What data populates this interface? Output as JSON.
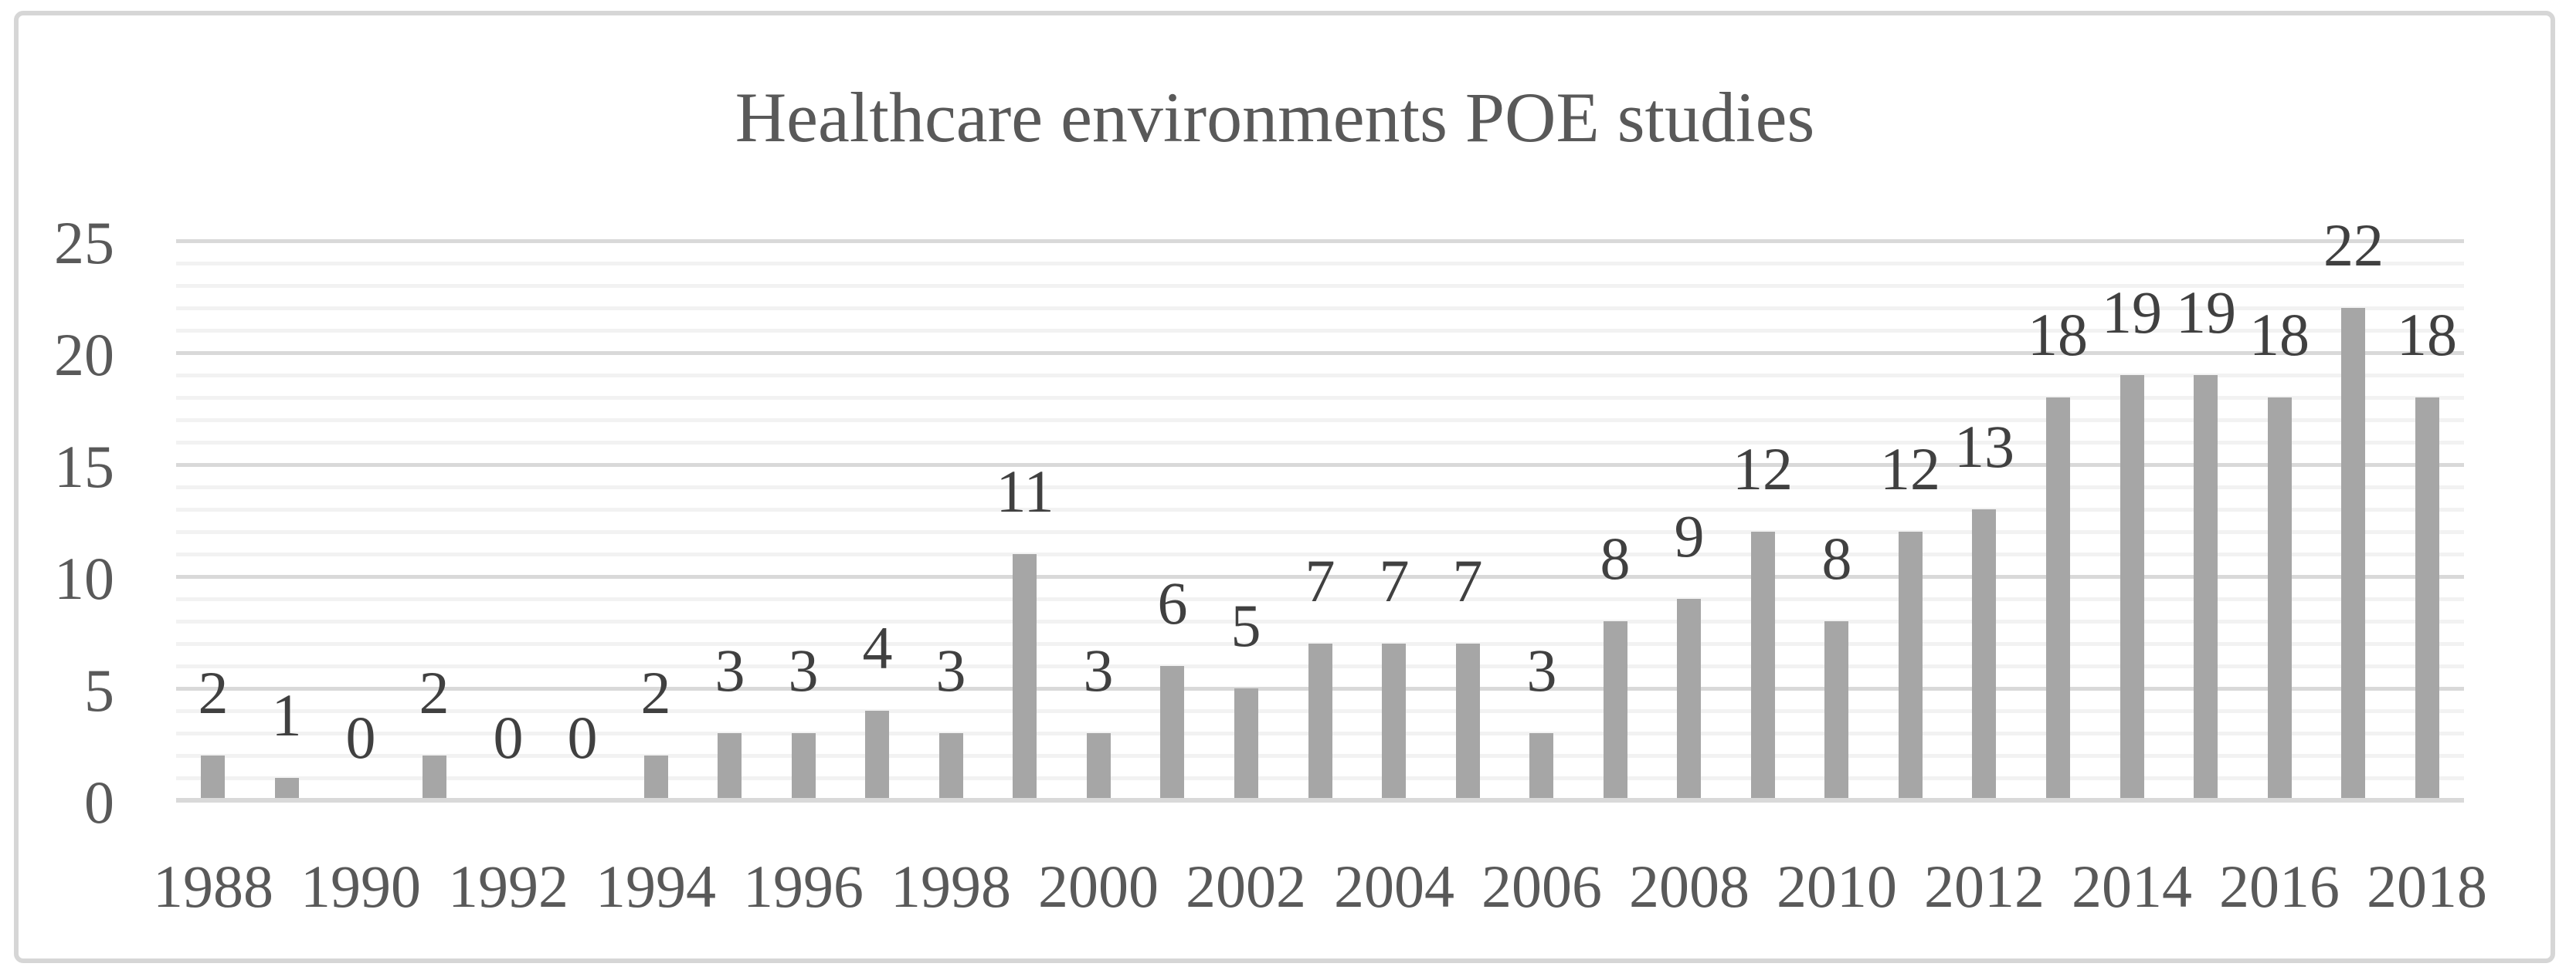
{
  "chart_data": {
    "type": "bar",
    "title": "Healthcare environments POE studies",
    "x": [
      1988,
      1989,
      1990,
      1991,
      1992,
      1993,
      1994,
      1995,
      1996,
      1997,
      1998,
      1999,
      2000,
      2001,
      2002,
      2003,
      2004,
      2005,
      2006,
      2007,
      2008,
      2009,
      2010,
      2011,
      2012,
      2013,
      2014,
      2015,
      2016,
      2017,
      2018
    ],
    "values": [
      2,
      1,
      0,
      2,
      0,
      0,
      2,
      3,
      3,
      4,
      3,
      11,
      3,
      6,
      5,
      7,
      7,
      7,
      3,
      8,
      9,
      12,
      8,
      12,
      13,
      18,
      19,
      19,
      18,
      22,
      18
    ],
    "data_labels": [
      2,
      1,
      0,
      2,
      0,
      0,
      2,
      3,
      3,
      4,
      3,
      11,
      3,
      6,
      5,
      7,
      7,
      7,
      3,
      8,
      9,
      12,
      8,
      12,
      13,
      18,
      19,
      19,
      18,
      22,
      18
    ],
    "x_tick_labels": [
      "1988",
      "1990",
      "1992",
      "1994",
      "1996",
      "1998",
      "2000",
      "2002",
      "2004",
      "2006",
      "2008",
      "2010",
      "2012",
      "2014",
      "2016",
      "2018"
    ],
    "y_ticks": [
      0,
      5,
      10,
      15,
      20,
      25
    ],
    "ylim": [
      0,
      25
    ],
    "xlabel": "",
    "ylabel": "",
    "legend": "none",
    "grid": "minor horizontal every 1, major horizontal every 5",
    "colors": {
      "bar": "#a6a6a6",
      "minor_gridline": "#f2f2f2",
      "major_gridline": "#d9d9d9",
      "axis_line": "#d9d9d9",
      "title_text": "#595959",
      "axis_text": "#595959",
      "data_label_text": "#404040",
      "frame_border": "#d6d6d6",
      "background": "#ffffff"
    }
  }
}
